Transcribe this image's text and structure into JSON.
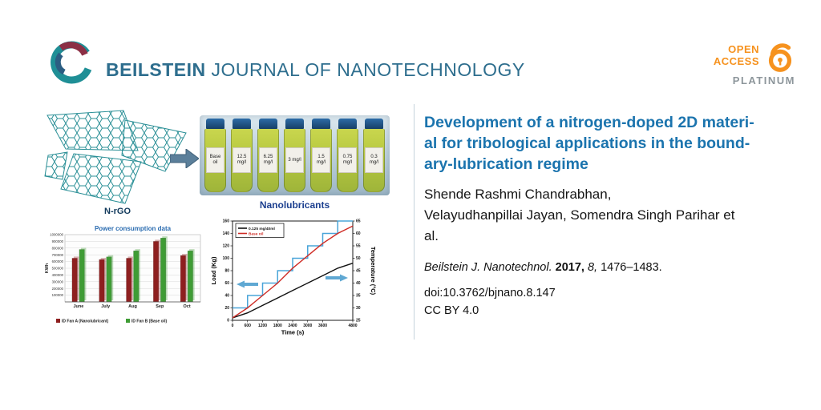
{
  "header": {
    "journal_bold": "BEILSTEIN",
    "journal_rest": "JOURNAL OF NANOTECHNOLOGY",
    "open_access": {
      "line1": "OPEN",
      "line2": "ACCESS",
      "line3": "PLATINUM"
    }
  },
  "colors": {
    "brand_blue": "#2e6e8e",
    "open_access_orange": "#F6921E",
    "platinum_gray": "#8d969b",
    "title_blue": "#1b74ae",
    "caption_blue": "#1c3f8f"
  },
  "article": {
    "title_lines": [
      "Development of a nitrogen-doped 2D materi-",
      "al for tribological applications in the bound-",
      "ary-lubrication regime"
    ],
    "authors_lines": [
      "Shende Rashmi Chandrabhan,",
      "Velayudhanpillai Jayan, Somendra Singh Parihar et",
      "al."
    ],
    "citation": {
      "journal": "Beilstein J. Nanotechnol.",
      "year": "2017,",
      "volume": "8,",
      "pages": "1476–1483."
    },
    "doi": "doi:10.3762/bjnano.8.147",
    "license": "CC BY 4.0"
  },
  "abstract_figure": {
    "graphene_label": "N-rGO",
    "vials_caption": "Nanolubricants",
    "vial_labels": [
      "Base oil",
      "12.5 mg/l",
      "6.25 mg/l",
      "3 mg/l",
      "1.5 mg/l",
      "0.75 mg/l",
      "0.3 mg/l"
    ]
  },
  "chart_data": [
    {
      "type": "bar",
      "title": "Power consumption data",
      "ylabel": "KWh",
      "categories": [
        "June",
        "July",
        "Aug",
        "Sep",
        "Oct"
      ],
      "series": [
        {
          "name": "ID Fan A (Nanolubricant)",
          "color": "#8e1f1f",
          "values": [
            650000,
            630000,
            650000,
            900000,
            690000
          ]
        },
        {
          "name": "ID Fan B (Base oil)",
          "color": "#3f9c35",
          "values": [
            780000,
            670000,
            760000,
            950000,
            760000
          ]
        }
      ],
      "ylim": [
        0,
        1000000
      ],
      "yticks": [
        100000,
        200000,
        300000,
        400000,
        500000,
        600000,
        700000,
        800000,
        900000,
        1000000
      ],
      "grid": true,
      "legend_position": "bottom"
    },
    {
      "type": "line",
      "xlabel": "Time (s)",
      "ylabel_left": "Load (Kg)",
      "ylabel_right": "Temperature (°C)",
      "xlim": [
        0,
        4800
      ],
      "xticks": [
        0,
        600,
        1200,
        1800,
        2400,
        3000,
        3600,
        4800
      ],
      "ylim_left": [
        0,
        160
      ],
      "yticks_left": [
        0,
        20,
        40,
        60,
        80,
        100,
        120,
        140,
        160
      ],
      "ylim_right": [
        25,
        65
      ],
      "yticks_right": [
        25,
        30,
        35,
        40,
        45,
        50,
        55,
        60,
        65
      ],
      "legend": [
        "0.125 mg/40ml",
        "Base oil"
      ],
      "legend_position": "top-left",
      "grid": false,
      "series": [
        {
          "name": "Load profile",
          "axis": "left",
          "color": "#4aa5d9",
          "step": true,
          "x": [
            0,
            600,
            1200,
            1800,
            2400,
            3000,
            3600,
            4200,
            4800
          ],
          "y": [
            20,
            40,
            60,
            80,
            100,
            120,
            140,
            160,
            160
          ]
        },
        {
          "name": "0.125 mg/40ml",
          "axis": "right",
          "color": "#111111",
          "x": [
            0,
            600,
            1200,
            1800,
            2400,
            3000,
            3600,
            4200,
            4800
          ],
          "y": [
            26,
            28,
            31,
            34,
            37,
            40,
            43,
            46,
            48
          ]
        },
        {
          "name": "Base oil",
          "axis": "right",
          "color": "#cf2b24",
          "x": [
            0,
            600,
            1200,
            1800,
            2400,
            3000,
            3600,
            4200,
            4800
          ],
          "y": [
            26,
            30,
            35,
            40,
            46,
            51,
            56,
            60,
            63
          ]
        }
      ]
    }
  ]
}
